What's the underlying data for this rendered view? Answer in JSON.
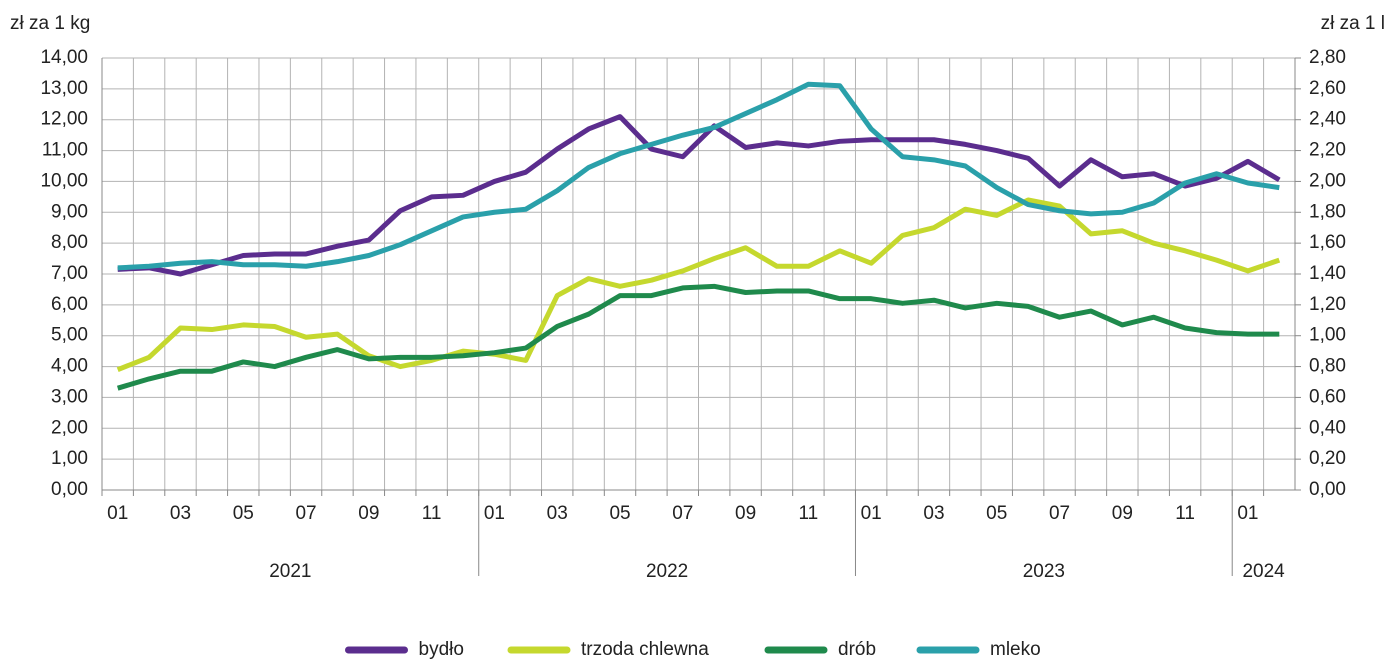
{
  "chart_data": {
    "type": "line",
    "y_axis_label": "zł za 1 kg",
    "y2_axis_label": "zł za 1 l",
    "categories": [
      "01",
      null,
      "03",
      null,
      "05",
      null,
      "07",
      null,
      "09",
      null,
      "11",
      null,
      "01",
      null,
      "03",
      null,
      "05",
      null,
      "07",
      null,
      "09",
      null,
      "11",
      null,
      "01",
      null,
      "03",
      null,
      "05",
      null,
      "07",
      null,
      "09",
      null,
      "11",
      null,
      "01",
      null
    ],
    "category_groups": [
      {
        "name": "2021",
        "size": 12
      },
      {
        "name": "2022",
        "size": 12
      },
      {
        "name": "2023",
        "size": 12
      },
      {
        "name": "2024",
        "size": 2
      }
    ],
    "ylim": [
      0,
      14
    ],
    "yticks": [
      {
        "value": 0,
        "label": "0,00"
      },
      {
        "value": 1,
        "label": "1,00"
      },
      {
        "value": 2,
        "label": "2,00"
      },
      {
        "value": 3,
        "label": "3,00"
      },
      {
        "value": 4,
        "label": "4,00"
      },
      {
        "value": 5,
        "label": "5,00"
      },
      {
        "value": 6,
        "label": "6,00"
      },
      {
        "value": 7,
        "label": "7,00"
      },
      {
        "value": 8,
        "label": "8,00"
      },
      {
        "value": 9,
        "label": "9,00"
      },
      {
        "value": 10,
        "label": "10,00"
      },
      {
        "value": 11,
        "label": "11,00"
      },
      {
        "value": 12,
        "label": "12,00"
      },
      {
        "value": 13,
        "label": "13,00"
      },
      {
        "value": 14,
        "label": "14,00"
      }
    ],
    "y2lim": [
      0,
      2.8
    ],
    "y2ticks": [
      {
        "value": 0,
        "label": "0,00"
      },
      {
        "value": 0.2,
        "label": "0,20"
      },
      {
        "value": 0.4,
        "label": "0,40"
      },
      {
        "value": 0.6,
        "label": "0,60"
      },
      {
        "value": 0.8,
        "label": "0,80"
      },
      {
        "value": 1,
        "label": "1,00"
      },
      {
        "value": 1.2,
        "label": "1,20"
      },
      {
        "value": 1.4,
        "label": "1,40"
      },
      {
        "value": 1.6,
        "label": "1,60"
      },
      {
        "value": 1.8,
        "label": "1,80"
      },
      {
        "value": 2,
        "label": "2,00"
      },
      {
        "value": 2.2,
        "label": "2,20"
      },
      {
        "value": 2.4,
        "label": "2,40"
      },
      {
        "value": 2.6,
        "label": "2,60"
      },
      {
        "value": 2.8,
        "label": "2,80"
      }
    ],
    "grid": true,
    "legend": "bottom",
    "series": [
      {
        "name": "bydło",
        "color": "#5b2d8e",
        "values": [
          7.15,
          7.2,
          7.0,
          7.3,
          7.6,
          7.65,
          7.65,
          7.9,
          8.1,
          9.05,
          9.5,
          9.55,
          10.0,
          10.3,
          11.05,
          11.7,
          12.1,
          11.05,
          10.8,
          11.8,
          11.1,
          11.25,
          11.15,
          11.3,
          11.35,
          11.35,
          11.35,
          11.2,
          11.0,
          10.75,
          9.85,
          10.7,
          10.15,
          10.25,
          9.85,
          10.1,
          10.65,
          10.05
        ]
      },
      {
        "name": "trzoda chlewna",
        "color": "#c5d82e",
        "values": [
          3.9,
          4.3,
          5.25,
          5.2,
          5.35,
          5.3,
          4.95,
          5.05,
          4.35,
          4.0,
          4.2,
          4.5,
          4.4,
          4.2,
          6.3,
          6.85,
          6.6,
          6.8,
          7.1,
          7.5,
          7.85,
          7.25,
          7.25,
          7.75,
          7.35,
          8.25,
          8.5,
          9.1,
          8.9,
          9.4,
          9.2,
          8.3,
          8.4,
          8.0,
          7.75,
          7.45,
          7.1,
          7.45
        ]
      },
      {
        "name": "drób",
        "color": "#1f8a4c",
        "values": [
          3.3,
          3.6,
          3.85,
          3.85,
          4.15,
          4.0,
          4.3,
          4.55,
          4.25,
          4.3,
          4.3,
          4.35,
          4.45,
          4.6,
          5.3,
          5.7,
          6.3,
          6.3,
          6.55,
          6.6,
          6.4,
          6.45,
          6.45,
          6.2,
          6.2,
          6.05,
          6.15,
          5.9,
          6.05,
          5.95,
          5.6,
          5.8,
          5.35,
          5.6,
          5.25,
          5.1,
          5.05,
          5.05
        ]
      },
      {
        "name": "mleko",
        "color": "#2aa0aa",
        "axis": "y2",
        "values": [
          1.44,
          1.45,
          1.47,
          1.48,
          1.46,
          1.46,
          1.45,
          1.48,
          1.52,
          1.59,
          1.68,
          1.77,
          1.8,
          1.82,
          1.94,
          2.09,
          2.18,
          2.24,
          2.3,
          2.35,
          2.44,
          2.53,
          2.63,
          2.62,
          2.34,
          2.16,
          2.14,
          2.1,
          1.96,
          1.85,
          1.81,
          1.79,
          1.8,
          1.86,
          1.99,
          2.05,
          1.99,
          1.96
        ]
      }
    ]
  }
}
